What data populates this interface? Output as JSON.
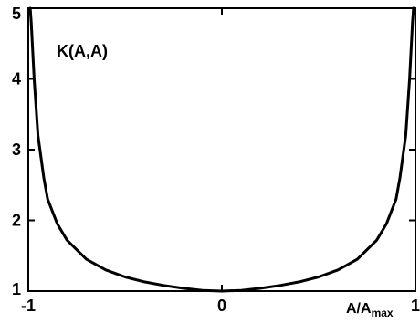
{
  "chart_data": {
    "type": "line",
    "title": "",
    "annotation": "K(A,A)",
    "xlabel_main": "A/A",
    "xlabel_sub": "max",
    "ylabel": "",
    "xlim": [
      -1,
      1
    ],
    "ylim": [
      1,
      5
    ],
    "grid": false,
    "xticks": [
      {
        "value": -1,
        "label": "-1"
      },
      {
        "value": 0,
        "label": "0"
      },
      {
        "value": 1,
        "label": "1"
      }
    ],
    "yticks": [
      {
        "value": 1,
        "label": "1"
      },
      {
        "value": 2,
        "label": "2"
      },
      {
        "value": 3,
        "label": "3"
      },
      {
        "value": 4,
        "label": "4"
      },
      {
        "value": 5,
        "label": "5"
      }
    ],
    "series": [
      {
        "x": [
          -0.985,
          -0.97,
          -0.95,
          -0.92,
          -0.9,
          -0.85,
          -0.8,
          -0.7,
          -0.6,
          -0.5,
          -0.4,
          -0.3,
          -0.2,
          -0.1,
          0,
          0.1,
          0.2,
          0.3,
          0.4,
          0.5,
          0.6,
          0.7,
          0.8,
          0.85,
          0.9,
          0.92,
          0.95,
          0.97,
          0.985
        ],
        "y": [
          4.8,
          4.0,
          3.2,
          2.6,
          2.3,
          1.95,
          1.72,
          1.45,
          1.3,
          1.2,
          1.13,
          1.08,
          1.04,
          1.01,
          1.0,
          1.01,
          1.04,
          1.08,
          1.13,
          1.2,
          1.3,
          1.45,
          1.72,
          1.95,
          2.3,
          2.6,
          3.2,
          4.0,
          4.8
        ]
      }
    ]
  }
}
